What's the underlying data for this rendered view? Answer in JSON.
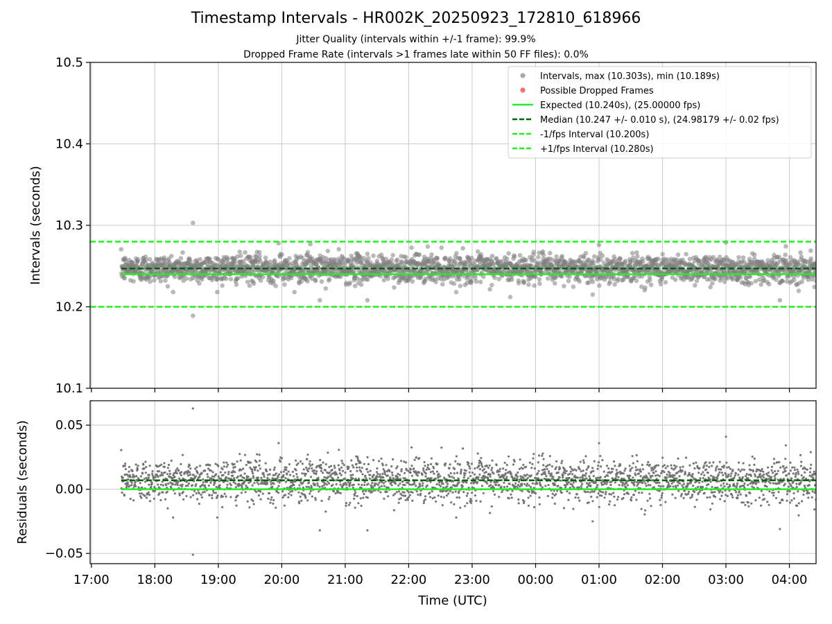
{
  "chart_data": {
    "type": "scatter",
    "title": "Timestamp Intervals - HR002K_20250923_172810_618966",
    "subtitle_lines": [
      "Jitter Quality (intervals within +/-1 frame): 99.9%",
      "Dropped Frame Rate (intervals >1 frames late within 50 FF files): 0.0%"
    ],
    "xlabel": "Time (UTC)",
    "x_unit": "hours since 17:00 UTC (2025-09-23)",
    "xlim": [
      -0.02,
      11.42
    ],
    "xticks": [
      {
        "value": 0,
        "label": "17:00"
      },
      {
        "value": 1,
        "label": "18:00"
      },
      {
        "value": 2,
        "label": "19:00"
      },
      {
        "value": 3,
        "label": "20:00"
      },
      {
        "value": 4,
        "label": "21:00"
      },
      {
        "value": 5,
        "label": "22:00"
      },
      {
        "value": 6,
        "label": "23:00"
      },
      {
        "value": 7,
        "label": "00:00"
      },
      {
        "value": 8,
        "label": "01:00"
      },
      {
        "value": 9,
        "label": "02:00"
      },
      {
        "value": 10,
        "label": "03:00"
      },
      {
        "value": 11,
        "label": "04:00"
      }
    ],
    "data_x_range": [
      0.47,
      11.42
    ],
    "grid": true,
    "panels": {
      "top": {
        "ylabel": "Intervals (seconds)",
        "ylim": [
          10.1,
          10.5
        ],
        "yticks": [
          {
            "value": 10.1,
            "label": "10.1"
          },
          {
            "value": 10.2,
            "label": "10.2"
          },
          {
            "value": 10.3,
            "label": "10.3"
          },
          {
            "value": 10.4,
            "label": "10.4"
          },
          {
            "value": 10.5,
            "label": "10.5"
          }
        ],
        "series": [
          {
            "name": "Intervals",
            "kind": "scatter",
            "color": "#808080",
            "center": 10.247,
            "spread": 0.01,
            "max": 10.303,
            "min": 10.189,
            "outliers": [
              {
                "x": 1.6,
                "y": 10.303
              },
              {
                "x": 1.6,
                "y": 10.189
              },
              {
                "x": 2.95,
                "y": 10.278
              },
              {
                "x": 3.45,
                "y": 10.277
              },
              {
                "x": 3.6,
                "y": 10.208
              },
              {
                "x": 4.35,
                "y": 10.208
              },
              {
                "x": 3.2,
                "y": 10.218
              },
              {
                "x": 10.0,
                "y": 10.279
              },
              {
                "x": 10.85,
                "y": 10.208
              },
              {
                "x": 5.3,
                "y": 10.274
              },
              {
                "x": 7.9,
                "y": 10.215
              },
              {
                "x": 6.6,
                "y": 10.212
              }
            ]
          },
          {
            "name": "Possible Dropped Frames",
            "kind": "scatter",
            "color": "#f07070",
            "points": []
          }
        ],
        "lines": [
          {
            "name": "Expected",
            "y": 10.24,
            "color": "#22ee22",
            "style": "solid"
          },
          {
            "name": "Median",
            "y": 10.247,
            "color": "#006400",
            "style": "dashed"
          },
          {
            "name": "-1/fps Interval",
            "y": 10.2,
            "color": "#22ee22",
            "style": "dashed"
          },
          {
            "name": "+1/fps Interval",
            "y": 10.28,
            "color": "#22ee22",
            "style": "dashed"
          }
        ]
      },
      "bottom": {
        "ylabel": "Residuals (seconds)",
        "ylim": [
          -0.058,
          0.069
        ],
        "yticks": [
          {
            "value": -0.05,
            "label": "−0.05"
          },
          {
            "value": 0.0,
            "label": "0.00"
          },
          {
            "value": 0.05,
            "label": "0.05"
          }
        ],
        "series": [
          {
            "name": "Residuals",
            "kind": "scatter",
            "color": "#707070",
            "center": 0.007,
            "spread": 0.01,
            "outliers": [
              {
                "x": 1.6,
                "y": 0.063
              },
              {
                "x": 1.6,
                "y": -0.051
              },
              {
                "x": 2.95,
                "y": 0.036
              },
              {
                "x": 3.6,
                "y": -0.032
              },
              {
                "x": 4.35,
                "y": -0.032
              },
              {
                "x": 10.0,
                "y": 0.041
              },
              {
                "x": 10.85,
                "y": -0.031
              },
              {
                "x": 7.9,
                "y": -0.025
              }
            ]
          }
        ],
        "lines": [
          {
            "name": "Zero",
            "y": 0.0,
            "color": "#22ee22",
            "style": "solid"
          },
          {
            "name": "Median residual",
            "y": 0.007,
            "color": "#006400",
            "style": "dashed"
          }
        ]
      }
    },
    "legend": {
      "placement": "top-right",
      "entries": [
        {
          "label": "Intervals, max (10.303s), min (10.189s)",
          "marker": "dot",
          "color": "#a9a9a9"
        },
        {
          "label": "Possible Dropped Frames",
          "marker": "dot",
          "color": "#f07070"
        },
        {
          "label": "Expected (10.240s), (25.00000 fps)",
          "marker": "solid",
          "color": "#22ee22"
        },
        {
          "label": "Median (10.247 +/- 0.010 s), (24.98179 +/- 0.02 fps)",
          "marker": "dashed",
          "color": "#006400"
        },
        {
          "label": "-1/fps Interval (10.200s)",
          "marker": "dashed",
          "color": "#22ee22"
        },
        {
          "label": "+1/fps Interval (10.280s)",
          "marker": "dashed",
          "color": "#22ee22"
        }
      ]
    }
  }
}
